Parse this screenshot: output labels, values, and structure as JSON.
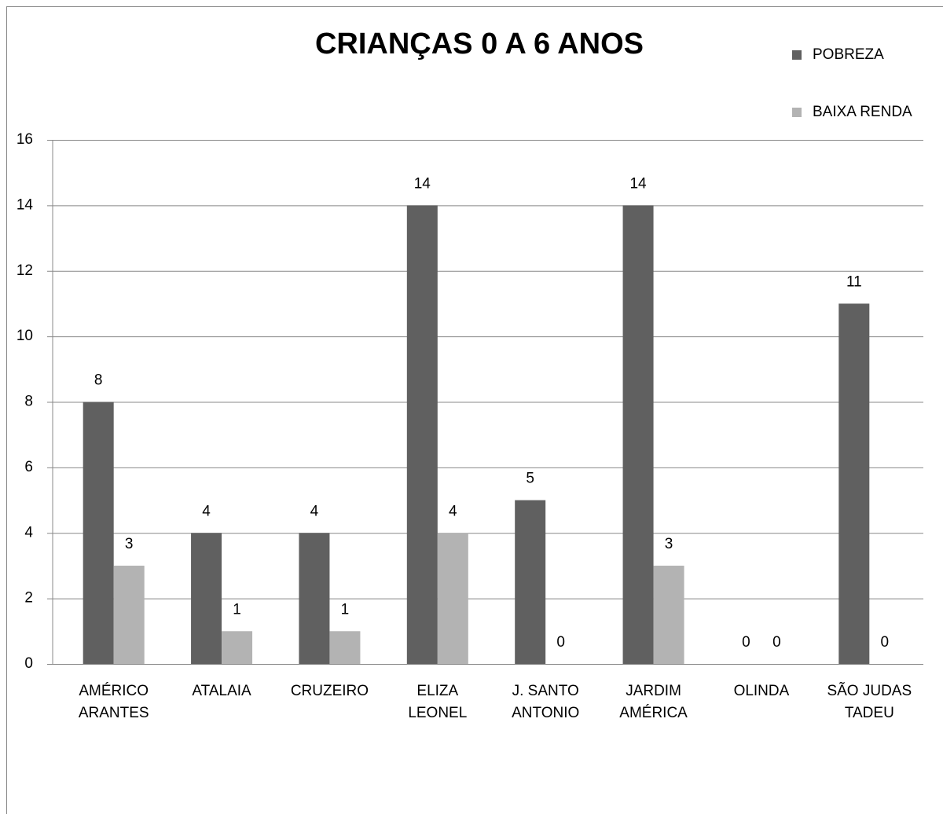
{
  "chart_data": {
    "type": "bar",
    "title": "CRIANÇAS 0 A 6 ANOS",
    "categories": [
      "AMÉRICO\nARANTES",
      "ATALAIA",
      "CRUZEIRO",
      "ELIZA\nLEONEL",
      "J. SANTO\nANTONIO",
      "JARDIM\nAMÉRICA",
      "OLINDA",
      "SÃO JUDAS\nTADEU"
    ],
    "series": [
      {
        "name": "POBREZA",
        "color": "#606060",
        "values": [
          8,
          4,
          4,
          14,
          5,
          14,
          0,
          11
        ]
      },
      {
        "name": "BAIXA RENDA",
        "color": "#b3b3b3",
        "values": [
          3,
          1,
          1,
          4,
          0,
          3,
          0,
          0
        ]
      }
    ],
    "ylim": [
      0,
      16
    ],
    "yticks": [
      0,
      2,
      4,
      6,
      8,
      10,
      12,
      14,
      16
    ],
    "grid": true,
    "legend": "top-right"
  }
}
